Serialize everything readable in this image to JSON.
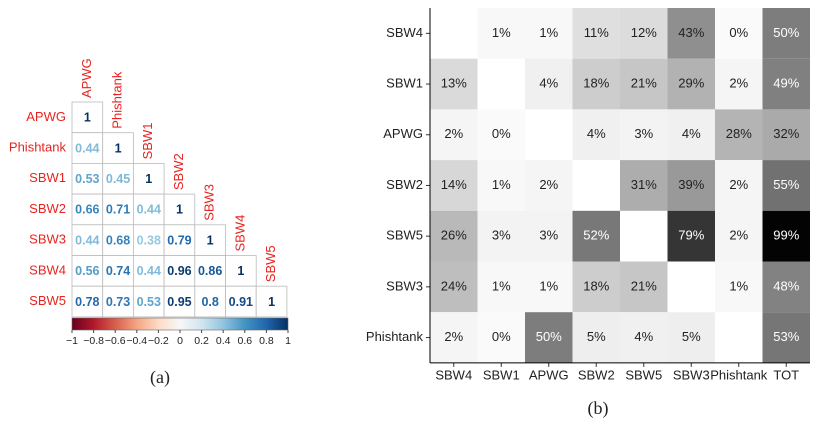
{
  "chart_data": [
    {
      "type": "corrplot",
      "labels": [
        "APWG",
        "Phishtank",
        "SBW1",
        "SBW2",
        "SBW3",
        "SBW4",
        "SBW5"
      ],
      "matrix": [
        [
          1
        ],
        [
          0.44,
          1
        ],
        [
          0.53,
          0.45,
          1
        ],
        [
          0.66,
          0.71,
          0.44,
          1
        ],
        [
          0.44,
          0.68,
          0.38,
          0.79,
          1
        ],
        [
          0.56,
          0.74,
          0.44,
          0.96,
          0.86,
          1
        ],
        [
          0.78,
          0.73,
          0.53,
          0.95,
          0.8,
          0.91,
          1
        ]
      ],
      "clim": [
        -1,
        1
      ],
      "cticks": [
        {
          "value": -1,
          "label": "−1"
        },
        {
          "value": -0.8,
          "label": "−0.8"
        },
        {
          "value": -0.6,
          "label": "−0.6"
        },
        {
          "value": -0.4,
          "label": "−0.4"
        },
        {
          "value": -0.2,
          "label": "−0.2"
        },
        0,
        0.2,
        0.4,
        0.6,
        0.8,
        1
      ],
      "label_color": "#e8231f",
      "caption": "(a)"
    },
    {
      "type": "heatmap",
      "rows": [
        "SBW4",
        "SBW1",
        "APWG",
        "SBW2",
        "SBW5",
        "SBW3",
        "Phishtank"
      ],
      "columns": [
        "SBW4",
        "SBW1",
        "APWG",
        "SBW2",
        "SBW5",
        "SBW3",
        "Phishtank",
        "TOT"
      ],
      "values": [
        [
          null,
          1,
          1,
          11,
          12,
          43,
          0,
          50
        ],
        [
          13,
          null,
          4,
          18,
          21,
          29,
          2,
          49
        ],
        [
          2,
          0,
          null,
          4,
          3,
          4,
          28,
          32
        ],
        [
          14,
          1,
          2,
          null,
          31,
          39,
          2,
          55
        ],
        [
          26,
          3,
          3,
          52,
          null,
          79,
          2,
          99
        ],
        [
          24,
          1,
          1,
          18,
          21,
          null,
          1,
          48
        ],
        [
          2,
          0,
          50,
          5,
          4,
          5,
          null,
          53
        ]
      ],
      "value_labels": [
        [
          null,
          "1%",
          "1%",
          "11%",
          "12%",
          "43%",
          "0%",
          "50%"
        ],
        [
          "13%",
          null,
          "4%",
          "18%",
          "21%",
          "29%",
          "2%",
          "49%"
        ],
        [
          "2%",
          "0%",
          null,
          "4%",
          "3%",
          "4%",
          "28%",
          "32%"
        ],
        [
          "14%",
          "1%",
          "2%",
          null,
          "31%",
          "39%",
          "2%",
          "55%"
        ],
        [
          "26%",
          "3%",
          "3%",
          "52%",
          null,
          "79%",
          "2%",
          "99%"
        ],
        [
          "24%",
          "1%",
          "1%",
          "18%",
          "21%",
          null,
          "1%",
          "48%"
        ],
        [
          "2%",
          "0%",
          "50%",
          "5%",
          "4%",
          "5%",
          null,
          "53%"
        ]
      ],
      "clim": [
        0,
        100
      ],
      "caption": "(b)"
    }
  ]
}
